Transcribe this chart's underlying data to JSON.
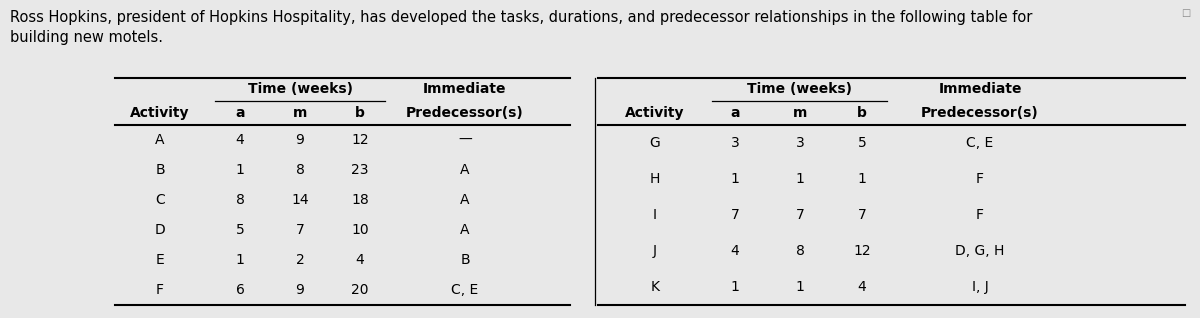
{
  "title_line1": "Ross Hopkins, president of Hopkins Hospitality, has developed the tasks, durations, and predecessor relationships in the following table for",
  "title_line2": "building new motels.",
  "bg_color": "#e8e8e8",
  "left_rows": [
    [
      "A",
      "4",
      "9",
      "12",
      "—"
    ],
    [
      "B",
      "1",
      "8",
      "23",
      "A"
    ],
    [
      "C",
      "8",
      "14",
      "18",
      "A"
    ],
    [
      "D",
      "5",
      "7",
      "10",
      "A"
    ],
    [
      "E",
      "1",
      "2",
      "4",
      "B"
    ],
    [
      "F",
      "6",
      "9",
      "20",
      "C, E"
    ]
  ],
  "right_rows": [
    [
      "G",
      "3",
      "3",
      "5",
      "C, E"
    ],
    [
      "H",
      "1",
      "1",
      "1",
      "F"
    ],
    [
      "I",
      "7",
      "7",
      "7",
      "F"
    ],
    [
      "J",
      "4",
      "8",
      "12",
      "D, G, H"
    ],
    [
      "K",
      "1",
      "1",
      "4",
      "I, J"
    ]
  ],
  "font_size_title": 10.5,
  "font_size_header": 10.0,
  "font_size_data": 10.0
}
